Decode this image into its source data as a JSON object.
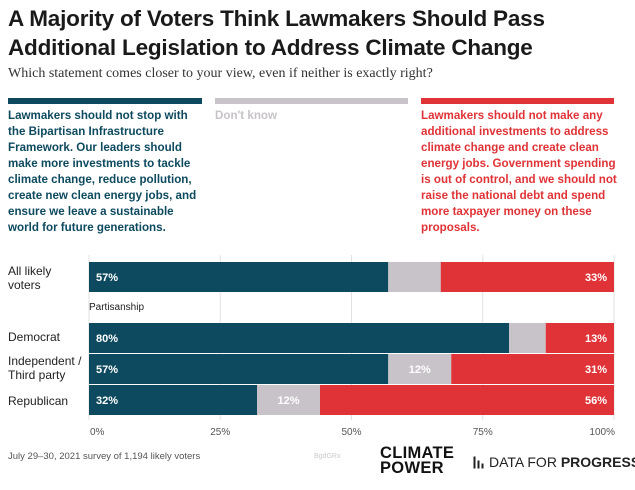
{
  "title": "A Majority of Voters Think Lawmakers Should Pass Additional Legislation to Address Climate Change",
  "subtitle": "Which statement comes closer to your view, even if neither is exactly right?",
  "legend": [
    {
      "key": "stop",
      "color": "#0e4a5f",
      "text": "Lawmakers should not stop with the Bipartisan Infrastructure Framework. Our leaders should make more investments to tackle climate change, reduce pollution, create new clean energy jobs, and ensure we leave a sustainable world for future generations."
    },
    {
      "key": "dont_know",
      "color": "#c7c3c8",
      "text": "Don't know"
    },
    {
      "key": "no_more",
      "color": "#e03337",
      "text": "Lawmakers should not make any additional investments to address climate change and create clean energy jobs. Government spending is out of control, and we should not raise the national debt and spend more taxpayer money on these proposals."
    }
  ],
  "chart_data": {
    "type": "bar",
    "orientation": "horizontal",
    "stacked": true,
    "categories": [
      "All likely voters",
      "Democrat",
      "Independent / Third party",
      "Republican"
    ],
    "group_label": "Partisanship",
    "series": [
      {
        "name": "Lawmakers should not stop with the Bipartisan Infrastructure Framework",
        "color": "#0e4a5f",
        "values": [
          57,
          80,
          57,
          32
        ],
        "labels": [
          "57%",
          "80%",
          "57%",
          "32%"
        ]
      },
      {
        "name": "Don't know",
        "color": "#c7c3c8",
        "values": [
          10,
          7,
          12,
          12
        ],
        "labels": [
          "",
          "",
          "12%",
          "12%"
        ]
      },
      {
        "name": "Lawmakers should not make any additional investments",
        "color": "#e03337",
        "values": [
          33,
          13,
          31,
          56
        ],
        "labels": [
          "33%",
          "13%",
          "31%",
          "56%"
        ]
      }
    ],
    "xlim": [
      0,
      100
    ],
    "x_ticks": [
      "0%",
      "25%",
      "50%",
      "75%",
      "100%"
    ],
    "grid": true
  },
  "footer": {
    "note": "July 29–30, 2021 survey of 1,194 likely voters",
    "credit": "BgdGRx",
    "logo_climate_power": [
      "CLIMATE",
      "POWER"
    ],
    "logo_dfp_regular": "DATA FOR ",
    "logo_dfp_bold": "PROGRESS"
  }
}
